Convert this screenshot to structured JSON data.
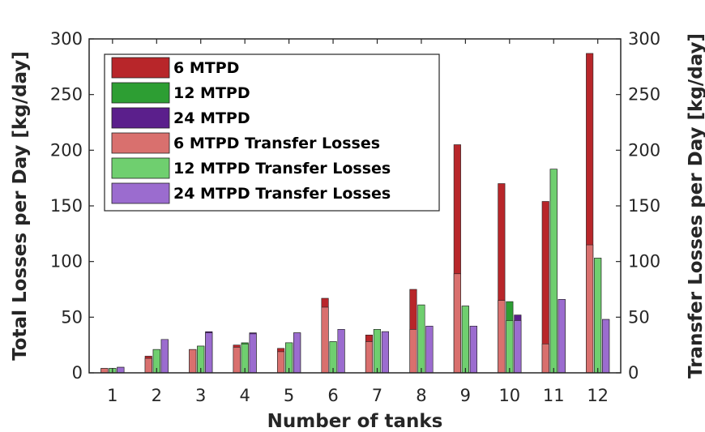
{
  "chart_data": {
    "type": "bar",
    "title": "",
    "xlabel": "Number of tanks",
    "ylabel": "Total Losses per Day [kg/day]",
    "ylabel_right": "Transfer Losses per Day [kg/day]",
    "categories": [
      "1",
      "2",
      "3",
      "4",
      "5",
      "6",
      "7",
      "8",
      "9",
      "10",
      "11",
      "12"
    ],
    "ylim": [
      0,
      300
    ],
    "ylim_right": [
      0,
      300
    ],
    "yticks": [
      0,
      50,
      100,
      150,
      200,
      250,
      300
    ],
    "grid": false,
    "legend_position": "top-left",
    "series": [
      {
        "name": "6 MTPD",
        "role": "total",
        "group": 0,
        "color": "#b8262a",
        "values": [
          4,
          15,
          21,
          25,
          22,
          67,
          34,
          75,
          205,
          170,
          154,
          287
        ]
      },
      {
        "name": "12 MTPD",
        "role": "total",
        "group": 1,
        "color": "#2d9e33",
        "values": [
          4,
          21,
          24,
          27,
          27,
          28,
          39,
          61,
          60,
          64,
          183,
          103
        ]
      },
      {
        "name": "24 MTPD",
        "role": "total",
        "group": 2,
        "color": "#5b1f8c",
        "values": [
          5,
          30,
          37,
          36,
          36,
          39,
          37,
          42,
          42,
          52,
          66,
          48
        ]
      },
      {
        "name": "6 MTPD Transfer Losses",
        "role": "transfer",
        "group": 0,
        "color": "#d9706e",
        "values": [
          4,
          13,
          21,
          23,
          19,
          59,
          28,
          39,
          89,
          65,
          26,
          115
        ]
      },
      {
        "name": "12 MTPD Transfer Losses",
        "role": "transfer",
        "group": 1,
        "color": "#6fcf6f",
        "values": [
          4,
          21,
          24,
          26,
          27,
          28,
          39,
          61,
          60,
          47,
          183,
          103
        ]
      },
      {
        "name": "24 MTPD Transfer Losses",
        "role": "transfer",
        "group": 2,
        "color": "#9b6ccf",
        "values": [
          5,
          30,
          36,
          35,
          36,
          39,
          37,
          42,
          42,
          47,
          66,
          48
        ]
      }
    ]
  }
}
